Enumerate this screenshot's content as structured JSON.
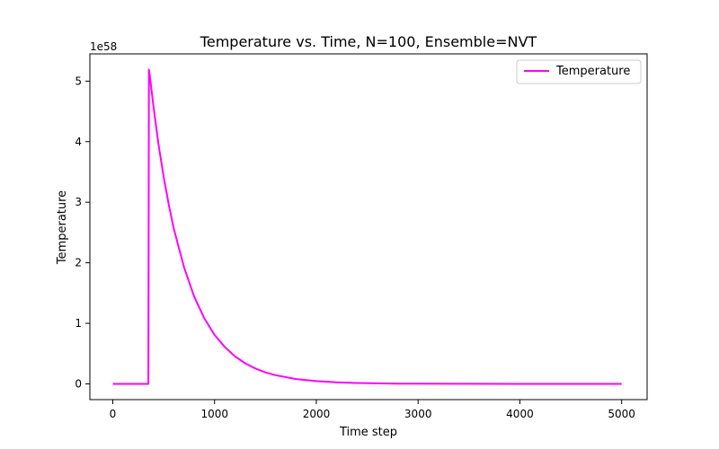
{
  "chart_data": {
    "type": "line",
    "title": "Temperature vs. Time, N=100, Ensemble=NVT",
    "xlabel": "Time step",
    "ylabel": "Temperature",
    "y_offset_label": "1e58",
    "xlim": [
      -225,
      5250
    ],
    "ylim": [
      -0.26,
      5.45
    ],
    "y_scale_note": "values in units of 1e58",
    "xticks": [
      0,
      1000,
      2000,
      3000,
      4000,
      5000
    ],
    "xtick_labels": [
      "0",
      "1000",
      "2000",
      "3000",
      "4000",
      "5000"
    ],
    "yticks": [
      0,
      1,
      2,
      3,
      4,
      5
    ],
    "ytick_labels": [
      "0",
      "1",
      "2",
      "3",
      "4",
      "5"
    ],
    "grid": false,
    "legend_position": "top-right",
    "series": [
      {
        "name": "Temperature",
        "color": "#ff00ff",
        "x": [
          0,
          100,
          200,
          300,
          350,
          355,
          360,
          400,
          450,
          500,
          550,
          600,
          700,
          800,
          900,
          1000,
          1100,
          1200,
          1300,
          1400,
          1500,
          1600,
          1800,
          2000,
          2200,
          2400,
          2600,
          2800,
          3000,
          3500,
          4000,
          4500,
          5000
        ],
        "values": [
          0,
          0,
          0,
          0,
          0,
          5.19,
          5.15,
          4.58,
          3.95,
          3.42,
          2.96,
          2.56,
          1.93,
          1.44,
          1.08,
          0.81,
          0.61,
          0.455,
          0.34,
          0.255,
          0.19,
          0.143,
          0.08,
          0.045,
          0.025,
          0.014,
          0.008,
          0.0045,
          0.0025,
          0.0004,
          0.0001,
          0.0,
          0.0
        ]
      }
    ]
  }
}
